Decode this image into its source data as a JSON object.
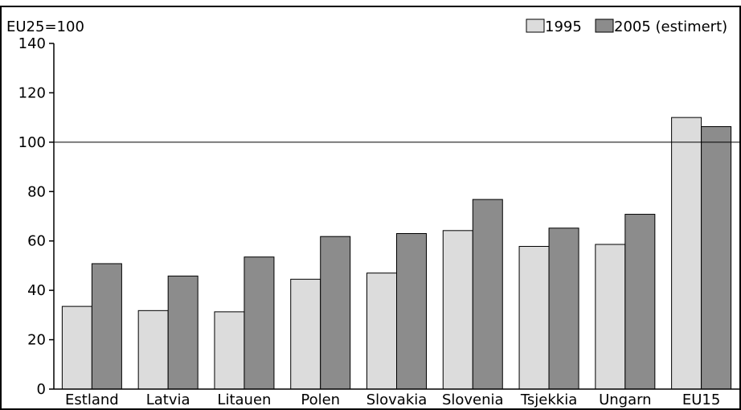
{
  "chart_data": {
    "type": "bar",
    "unit_label": "EU25=100",
    "categories": [
      "Estland",
      "Latvia",
      "Litauen",
      "Polen",
      "Slovakia",
      "Slovenia",
      "Tsjekkia",
      "Ungarn",
      "EU15"
    ],
    "series": [
      {
        "name": "1995",
        "color": "#dcdcdc",
        "values": [
          33.5,
          31.8,
          31.3,
          44.5,
          47,
          64.2,
          57.8,
          58.6,
          110
        ]
      },
      {
        "name": "2005 (estimert)",
        "color": "#8c8c8c",
        "values": [
          50.8,
          45.8,
          53.5,
          61.8,
          63,
          76.8,
          65.2,
          70.8,
          106.3
        ]
      }
    ],
    "ylim": [
      0,
      140
    ],
    "yticks": [
      0,
      20,
      40,
      60,
      80,
      100,
      120,
      140
    ],
    "reference_line": 100,
    "grid": false,
    "legend_position": "top-right"
  }
}
